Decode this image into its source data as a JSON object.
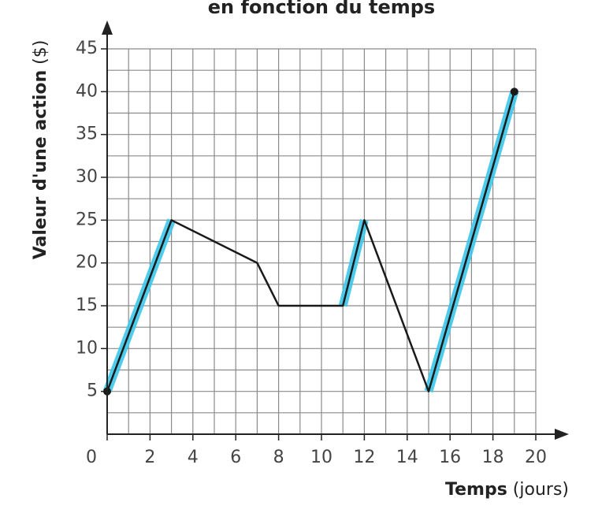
{
  "chart_data": {
    "type": "line",
    "title": "en fonction du temps",
    "y_label": "Valeur d'une action",
    "y_unit": "($)",
    "x_label": "Temps",
    "x_unit": "(jours)",
    "x": [
      0,
      3,
      7,
      8,
      11,
      12,
      15,
      19
    ],
    "series": [
      {
        "color": "#1a1a1a",
        "values": [
          5,
          25,
          20,
          15,
          15,
          25,
          5,
          40
        ]
      }
    ],
    "endpoint_markers": true,
    "highlight": {
      "color": "#3cc6ea",
      "intervals": [
        [
          0,
          3
        ],
        [
          11,
          12
        ],
        [
          15,
          19
        ]
      ]
    },
    "xlim": [
      0,
      20
    ],
    "ylim": [
      0,
      45
    ],
    "xticks": [
      0,
      2,
      4,
      6,
      8,
      10,
      12,
      14,
      16,
      18,
      20
    ],
    "yticks": [
      5,
      10,
      15,
      20,
      25,
      30,
      35,
      40,
      45
    ],
    "grid": true,
    "minor_grid_step": [
      1,
      2.5
    ]
  }
}
